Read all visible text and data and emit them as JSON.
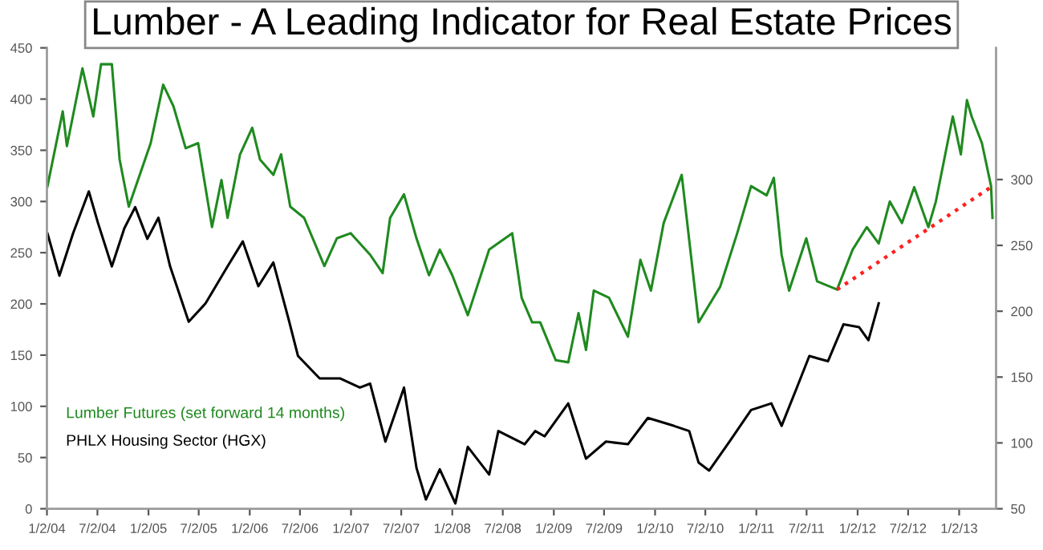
{
  "chart_data": {
    "type": "line",
    "title": "Lumber - A Leading Indicator for Real Estate Prices",
    "xlim": [
      "2004-01-02",
      "2013-05-15"
    ],
    "xticks": [
      {
        "value": "2004-01-02",
        "label": "1/2/04"
      },
      {
        "value": "2004-07-02",
        "label": "7/2/04"
      },
      {
        "value": "2005-01-02",
        "label": "1/2/05"
      },
      {
        "value": "2005-07-02",
        "label": "7/2/05"
      },
      {
        "value": "2006-01-02",
        "label": "1/2/06"
      },
      {
        "value": "2006-07-02",
        "label": "7/2/06"
      },
      {
        "value": "2007-01-02",
        "label": "1/2/07"
      },
      {
        "value": "2007-07-02",
        "label": "7/2/07"
      },
      {
        "value": "2008-01-02",
        "label": "1/2/08"
      },
      {
        "value": "2008-07-02",
        "label": "7/2/08"
      },
      {
        "value": "2009-01-02",
        "label": "1/2/09"
      },
      {
        "value": "2009-07-02",
        "label": "7/2/09"
      },
      {
        "value": "2010-01-02",
        "label": "1/2/10"
      },
      {
        "value": "2010-07-02",
        "label": "7/2/10"
      },
      {
        "value": "2011-01-02",
        "label": "1/2/11"
      },
      {
        "value": "2011-07-02",
        "label": "7/2/11"
      },
      {
        "value": "2012-01-02",
        "label": "1/2/12"
      },
      {
        "value": "2012-07-02",
        "label": "7/2/12"
      },
      {
        "value": "2013-01-02",
        "label": "1/2/13"
      }
    ],
    "ylim": [
      0,
      450
    ],
    "yticks": [
      0,
      50,
      100,
      150,
      200,
      250,
      300,
      350,
      400,
      450
    ],
    "y2lim": [
      50,
      400
    ],
    "y2ticks": [
      50,
      100,
      150,
      200,
      250,
      300
    ],
    "grid": false,
    "legend": "bottom left",
    "series": [
      {
        "name": "Lumber Futures (set forward 14 months)",
        "color": "#1f8a1f",
        "x": [
          "2004-01-04",
          "2004-02-28",
          "2004-03-14",
          "2004-05-09",
          "2004-06-17",
          "2004-07-15",
          "2004-08-23",
          "2004-09-20",
          "2004-10-23",
          "2005-01-10",
          "2005-02-24",
          "2005-04-02",
          "2005-05-16",
          "2005-06-30",
          "2005-08-19",
          "2005-09-22",
          "2005-10-14",
          "2005-11-28",
          "2006-01-11",
          "2006-02-08",
          "2006-03-28",
          "2006-04-25",
          "2006-05-28",
          "2006-07-17",
          "2006-09-28",
          "2006-11-12",
          "2007-01-01",
          "2007-03-12",
          "2007-04-26",
          "2007-05-23",
          "2007-07-12",
          "2007-08-26",
          "2007-10-10",
          "2007-11-18",
          "2008-01-02",
          "2008-02-27",
          "2008-05-14",
          "2008-08-05",
          "2008-09-08",
          "2008-10-16",
          "2008-11-14",
          "2009-01-09",
          "2009-02-23",
          "2009-04-01",
          "2009-04-28",
          "2009-05-26",
          "2009-07-20",
          "2009-09-26",
          "2009-11-10",
          "2009-12-18",
          "2010-02-02",
          "2010-04-08",
          "2010-06-08",
          "2010-08-25",
          "2010-10-25",
          "2010-12-14",
          "2011-02-08",
          "2011-03-06",
          "2011-04-03",
          "2011-04-30",
          "2011-07-01",
          "2011-08-09",
          "2011-10-20",
          "2011-12-15",
          "2012-02-04",
          "2012-03-18",
          "2012-04-27",
          "2012-06-10",
          "2012-07-24",
          "2012-09-13",
          "2012-10-10",
          "2012-12-10",
          "2013-01-08",
          "2013-01-30",
          "2013-02-16",
          "2013-03-25",
          "2013-04-27",
          "2013-05-02"
        ],
        "values": [
          315,
          388,
          354,
          430,
          383,
          434,
          434,
          341,
          295,
          357,
          414,
          393,
          352,
          357,
          275,
          321,
          284,
          346,
          372,
          341,
          326,
          346,
          295,
          284,
          237,
          264,
          269,
          248,
          230,
          284,
          307,
          264,
          228,
          253,
          228,
          189,
          253,
          269,
          206,
          182,
          182,
          145,
          143,
          191,
          155,
          213,
          206,
          168,
          243,
          213,
          279,
          326,
          182,
          217,
          269,
          315,
          306,
          323,
          248,
          213,
          264,
          222,
          214,
          253,
          275,
          259,
          300,
          279,
          314,
          275,
          300,
          383,
          346,
          399,
          383,
          357,
          315,
          284
        ]
      },
      {
        "name": "PHLX Housing Sector (HGX)",
        "color": "#000000",
        "axis": "y2",
        "x": [
          "2004-01-04",
          "2004-02-16",
          "2004-04-05",
          "2004-06-01",
          "2004-07-04",
          "2004-08-23",
          "2004-10-07",
          "2004-11-15",
          "2004-12-29",
          "2005-02-07",
          "2005-03-21",
          "2005-05-27",
          "2005-07-27",
          "2005-10-14",
          "2005-12-08",
          "2006-02-02",
          "2006-03-28",
          "2006-05-22",
          "2006-06-25",
          "2006-09-11",
          "2006-11-23",
          "2007-02-03",
          "2007-03-12",
          "2007-05-06",
          "2007-07-12",
          "2007-08-26",
          "2007-09-29",
          "2007-11-18",
          "2008-01-13",
          "2008-02-27",
          "2008-05-14",
          "2008-06-16",
          "2008-09-19",
          "2008-10-27",
          "2008-11-30",
          "2009-02-23",
          "2009-04-28",
          "2009-07-09",
          "2009-09-26",
          "2009-12-07",
          "2010-03-10",
          "2010-05-05",
          "2010-06-08",
          "2010-07-16",
          "2010-09-27",
          "2010-12-14",
          "2011-02-25",
          "2011-04-03",
          "2011-05-28",
          "2011-07-12",
          "2011-09-17",
          "2011-11-12",
          "2012-01-07",
          "2012-02-10",
          "2012-03-18"
        ],
        "values": [
          259,
          227,
          259,
          291,
          267,
          234,
          263,
          279,
          255,
          271,
          234,
          192,
          206,
          234,
          253,
          219,
          237,
          194,
          166,
          149,
          149,
          142,
          145,
          101,
          142,
          81,
          57,
          80,
          54,
          97,
          76,
          109,
          99,
          109,
          105,
          130,
          88,
          101,
          99,
          119,
          113,
          109,
          85,
          79,
          101,
          125,
          130,
          113,
          142,
          166,
          162,
          190,
          188,
          178,
          206
        ]
      },
      {
        "type": "line",
        "color": "#ff2020",
        "line_style": "dotted",
        "x": [
          "2011-10-20",
          "2013-05-02"
        ],
        "values": [
          214,
          315
        ]
      }
    ]
  }
}
